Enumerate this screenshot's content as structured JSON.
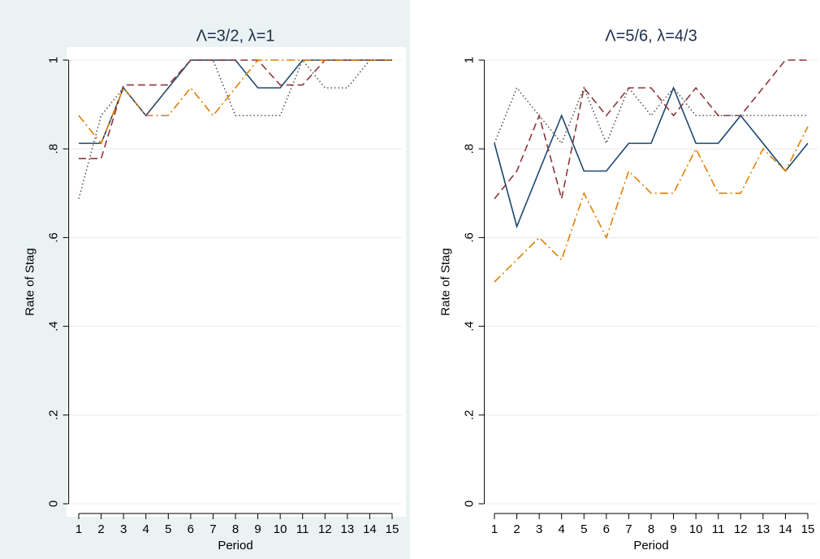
{
  "chart_data": [
    {
      "type": "line",
      "title": "Λ=3/2, λ=1",
      "x_label": "Period",
      "y_label": "Rate of Stag",
      "background": "#eaf2f3",
      "grid": true,
      "x": [
        1,
        2,
        3,
        4,
        5,
        6,
        7,
        8,
        9,
        10,
        11,
        12,
        13,
        14,
        15
      ],
      "xlim": [
        0.55,
        15.45
      ],
      "xticks": [
        1,
        2,
        3,
        4,
        5,
        6,
        7,
        8,
        9,
        10,
        11,
        12,
        13,
        14,
        15
      ],
      "ylim": [
        0,
        1
      ],
      "yticks": [
        0,
        {
          "value": 0.2,
          "label": ".2"
        },
        {
          "value": 0.4,
          "label": ".4"
        },
        {
          "value": 0.6,
          "label": ".6"
        },
        {
          "value": 0.8,
          "label": ".8"
        },
        1
      ],
      "series": [
        {
          "color": "#1a476f",
          "dash": "solid",
          "values": [
            0.8125,
            0.8125,
            0.9375,
            0.875,
            0.9375,
            1,
            1,
            1,
            0.9375,
            0.9375,
            1,
            1,
            1,
            1,
            1
          ]
        },
        {
          "color": "#90353b",
          "dash": "dash",
          "values": [
            0.778,
            0.778,
            0.944,
            0.944,
            0.944,
            1,
            1,
            1,
            1,
            0.944,
            0.944,
            1,
            1,
            1,
            1
          ]
        },
        {
          "color": "#e37e00",
          "dash": "dashdot",
          "values": [
            0.875,
            0.8125,
            0.9375,
            0.875,
            0.875,
            0.9375,
            0.875,
            0.9375,
            1,
            1,
            1,
            1,
            1,
            1,
            1
          ]
        },
        {
          "color": "#555555",
          "dash": "dot",
          "values": [
            0.6875,
            0.875,
            0.9375,
            0.875,
            0.9375,
            1,
            1,
            0.875,
            0.875,
            0.875,
            1,
            0.9375,
            0.9375,
            1,
            1
          ]
        }
      ]
    },
    {
      "type": "line",
      "title": "Λ=5/6, λ=4/3",
      "x_label": "Period",
      "y_label": "Rate of Stag",
      "background": "#ffffff",
      "grid": true,
      "x": [
        1,
        2,
        3,
        4,
        5,
        6,
        7,
        8,
        9,
        10,
        11,
        12,
        13,
        14,
        15
      ],
      "xlim": [
        0.55,
        15.45
      ],
      "xticks": [
        1,
        2,
        3,
        4,
        5,
        6,
        7,
        8,
        9,
        10,
        11,
        12,
        13,
        14,
        15
      ],
      "ylim": [
        0,
        1
      ],
      "yticks": [
        0,
        {
          "value": 0.2,
          "label": ".2"
        },
        {
          "value": 0.4,
          "label": ".4"
        },
        {
          "value": 0.6,
          "label": ".6"
        },
        {
          "value": 0.8,
          "label": ".8"
        },
        1
      ],
      "series": [
        {
          "color": "#1a476f",
          "dash": "solid",
          "values": [
            0.8125,
            0.625,
            0.75,
            0.875,
            0.75,
            0.75,
            0.8125,
            0.8125,
            0.9375,
            0.8125,
            0.8125,
            0.875,
            0.8125,
            0.75,
            0.8125
          ]
        },
        {
          "color": "#90353b",
          "dash": "dash",
          "values": [
            0.6875,
            0.75,
            0.875,
            0.6875,
            0.9375,
            0.875,
            0.9375,
            0.9375,
            0.875,
            0.9375,
            0.875,
            0.875,
            0.9375,
            1,
            1
          ]
        },
        {
          "color": "#e37e00",
          "dash": "dashdot",
          "values": [
            0.5,
            0.55,
            0.6,
            0.55,
            0.7,
            0.6,
            0.75,
            0.7,
            0.7,
            0.8,
            0.7,
            0.7,
            0.8,
            0.75,
            0.85
          ]
        },
        {
          "color": "#555555",
          "dash": "dot",
          "values": [
            0.8125,
            0.9375,
            0.875,
            0.8125,
            0.9375,
            0.8125,
            0.9375,
            0.875,
            0.9375,
            0.875,
            0.875,
            0.875,
            0.875,
            0.875,
            0.875
          ]
        }
      ]
    }
  ]
}
